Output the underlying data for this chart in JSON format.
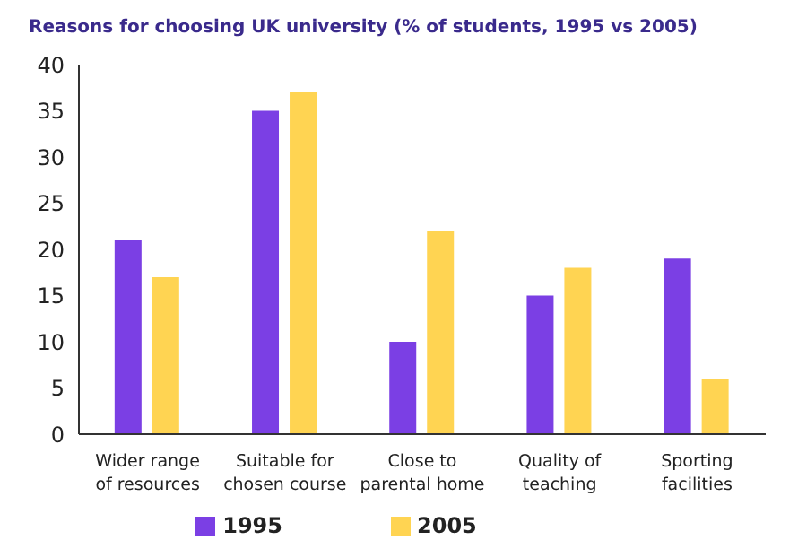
{
  "chart_data": {
    "type": "bar",
    "title": "Reasons for choosing UK university (% of students, 1995 vs 2005)",
    "categories": [
      "Wider range of resources",
      "Suitable for chosen course",
      "Close to parental home",
      "Quality of teaching",
      "Sporting facilities"
    ],
    "series": [
      {
        "name": "1995",
        "color": "#7b3fe4",
        "values": [
          21,
          35,
          10,
          15,
          19
        ]
      },
      {
        "name": "2005",
        "color": "#ffd452",
        "values": [
          17,
          37,
          22,
          18,
          6
        ]
      }
    ],
    "ylim": [
      0,
      40
    ],
    "yticks": [
      0,
      5,
      10,
      15,
      20,
      25,
      30,
      35,
      40
    ],
    "grid": false,
    "legend": "bottom"
  }
}
